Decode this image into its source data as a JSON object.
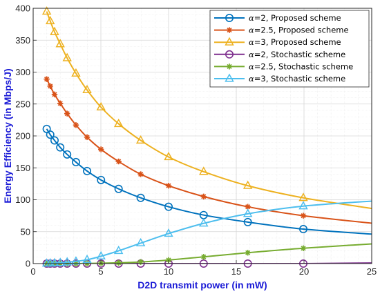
{
  "chart_data": {
    "type": "line",
    "xlabel": "D2D transmit power (in mW)",
    "ylabel": "Energy Efficiency (in Mbps/J)",
    "xlim": [
      0,
      25
    ],
    "ylim": [
      0,
      400
    ],
    "xticks": [
      0,
      5,
      10,
      15,
      20,
      25
    ],
    "yticks": [
      0,
      50,
      100,
      150,
      200,
      250,
      300,
      350,
      400
    ],
    "grid": true,
    "legend_position": "top-right",
    "x": [
      1.0,
      1.26,
      1.58,
      2.0,
      2.51,
      3.16,
      3.98,
      5.01,
      6.31,
      7.94,
      10.0,
      12.59,
      15.85,
      19.95,
      25.12
    ],
    "series": [
      {
        "name": "α=2, Proposed scheme",
        "greek": "α",
        "name_rest": "=2, Proposed scheme",
        "color": "#0072bd",
        "marker": "circle",
        "marker_x": [
          1.0,
          1.26,
          1.58,
          2.0,
          2.51,
          3.16,
          3.98,
          5.01,
          6.31,
          7.94,
          10.0,
          12.59,
          15.85,
          19.95
        ],
        "x": [
          1.0,
          1.26,
          1.58,
          2.0,
          2.51,
          3.16,
          3.98,
          5.01,
          6.31,
          7.94,
          10.0,
          12.59,
          15.85,
          19.95,
          25.12
        ],
        "values": [
          211,
          202,
          193,
          182,
          171,
          159,
          145,
          131,
          117,
          103,
          89,
          76,
          65,
          54,
          46
        ]
      },
      {
        "name": "α=2.5, Proposed scheme",
        "greek": "α",
        "name_rest": "=2.5, Proposed scheme",
        "color": "#d95319",
        "marker": "star",
        "marker_x": [
          1.0,
          1.26,
          1.58,
          2.0,
          2.51,
          3.16,
          3.98,
          5.01,
          6.31,
          7.94,
          10.0,
          12.59,
          15.85,
          19.95
        ],
        "x": [
          1.0,
          1.26,
          1.58,
          2.0,
          2.51,
          3.16,
          3.98,
          5.01,
          6.31,
          7.94,
          10.0,
          12.59,
          15.85,
          19.95,
          25.12
        ],
        "values": [
          289,
          278,
          265,
          251,
          235,
          217,
          198,
          179,
          160,
          140,
          122,
          105,
          89,
          75,
          63
        ]
      },
      {
        "name": "α=3, Proposed scheme",
        "greek": "α",
        "name_rest": "=3, Proposed scheme",
        "color": "#edb120",
        "marker": "triangle",
        "marker_x": [
          1.0,
          1.26,
          1.58,
          2.0,
          2.51,
          3.16,
          3.98,
          5.01,
          6.31,
          7.94,
          10.0,
          12.59,
          15.85,
          19.95
        ],
        "x": [
          1.0,
          1.26,
          1.58,
          2.0,
          2.51,
          3.16,
          3.98,
          5.01,
          6.31,
          7.94,
          10.0,
          12.59,
          15.85,
          19.95,
          25.12
        ],
        "values": [
          395,
          380,
          363,
          344,
          322,
          298,
          272,
          245,
          219,
          193,
          167,
          144,
          122,
          103,
          86
        ]
      },
      {
        "name": "α=2, Stochastic scheme",
        "greek": "α",
        "name_rest": "=2, Stochastic scheme",
        "color": "#7e2f8e",
        "marker": "circle",
        "marker_x": [
          1.0,
          1.26,
          1.58,
          2.0,
          2.51,
          3.16,
          3.98,
          5.01,
          6.31,
          7.94,
          10.0,
          12.59,
          15.85,
          19.95
        ],
        "x": [
          1.0,
          1.26,
          1.58,
          2.0,
          2.51,
          3.16,
          3.98,
          5.01,
          6.31,
          7.94,
          10.0,
          12.59,
          15.85,
          19.95,
          25.12
        ],
        "values": [
          0,
          0,
          0,
          0,
          0,
          0,
          0,
          0,
          0,
          0,
          0,
          0,
          0,
          0,
          1
        ]
      },
      {
        "name": "α=2.5, Stochastic scheme",
        "greek": "α",
        "name_rest": "=2.5, Stochastic scheme",
        "color": "#77ac30",
        "marker": "star",
        "marker_x": [
          1.0,
          1.26,
          1.58,
          2.0,
          2.51,
          3.16,
          3.98,
          5.01,
          6.31,
          7.94,
          10.0,
          12.59,
          15.85,
          19.95
        ],
        "x": [
          1.0,
          1.26,
          1.58,
          2.0,
          2.51,
          3.16,
          3.98,
          5.01,
          6.31,
          7.94,
          10.0,
          12.59,
          15.85,
          19.95,
          25.12
        ],
        "values": [
          0,
          0,
          0,
          0,
          0,
          0,
          0.3,
          0.6,
          1.2,
          2.5,
          5.5,
          10.5,
          17,
          24,
          31
        ]
      },
      {
        "name": "α=3, Stochastic scheme",
        "greek": "α",
        "name_rest": "=3, Stochastic scheme",
        "color": "#4dbeee",
        "marker": "triangle",
        "marker_x": [
          1.0,
          1.26,
          1.58,
          2.0,
          2.51,
          3.16,
          3.98,
          5.01,
          6.31,
          7.94,
          10.0,
          12.59,
          15.85,
          19.95
        ],
        "x": [
          1.0,
          1.26,
          1.58,
          2.0,
          2.51,
          3.16,
          3.98,
          5.01,
          6.31,
          7.94,
          10.0,
          12.59,
          15.85,
          19.95,
          25.12
        ],
        "values": [
          0.3,
          0.5,
          0.8,
          1.3,
          2.2,
          3.5,
          6,
          11.5,
          20,
          32,
          47,
          63,
          78,
          90,
          98
        ]
      }
    ]
  }
}
